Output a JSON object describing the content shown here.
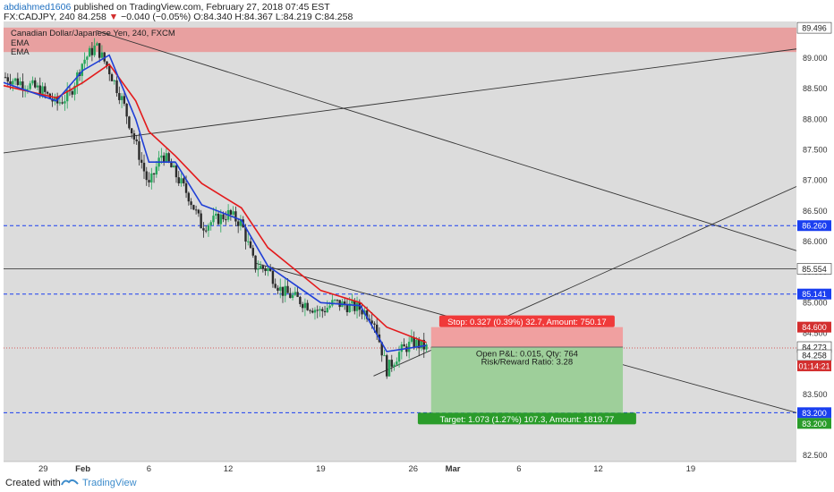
{
  "header": {
    "author": "abdiahmed1606",
    "published_text": "published on TradingView.com, February 27, 2018 07:45 EST",
    "symbol_line": "FX:CADJPY, 240",
    "last_price": "84.258",
    "change_arrow": "▼",
    "change": "−0.040 (−0.05%)",
    "open": "O:84.340",
    "high": "H:84.367",
    "low": "L:84.219",
    "close": "C:84.258"
  },
  "legend": {
    "title": "Canadian Dollar/Japanese Yen, 240, FXCM",
    "ema1": "EMA",
    "ema2": "EMA"
  },
  "colors": {
    "plot_bg": "#dcdcdc",
    "candle_up": "#26a65b",
    "candle_down": "#2b2b2b",
    "ema_fast": "#1f3fd6",
    "ema_slow": "#e31a1c",
    "dashed_level": "#1a3ff0",
    "resistance_zone": "#e8a0a0",
    "stop_box": "#f0a0a0",
    "target_box": "#9ecf9a",
    "stop_label": "#f03a3a",
    "target_label": "#2a9c2a",
    "current_price": "#d32f2f"
  },
  "price_axis": {
    "ticks": [
      "89.000",
      "88.500",
      "88.000",
      "87.500",
      "87.000",
      "86.500",
      "86.000",
      "85.500",
      "85.000",
      "84.500",
      "84.000",
      "83.500",
      "83.000",
      "82.500"
    ],
    "labels": [
      {
        "text": "89.496",
        "style": "white"
      },
      {
        "text": "86.260",
        "style": "blue"
      },
      {
        "text": "85.554",
        "style": "white"
      },
      {
        "text": "85.141",
        "style": "blue"
      },
      {
        "text": "84.600",
        "style": "red"
      },
      {
        "text": "84.273",
        "style": "white"
      },
      {
        "text": "84.258",
        "style": "white"
      },
      {
        "text": "01:14:21",
        "style": "red"
      },
      {
        "text": "83.200",
        "style": "blue"
      },
      {
        "text": "83.200",
        "style": "green"
      }
    ]
  },
  "time_axis": {
    "ticks": [
      "29",
      "Feb",
      "6",
      "12",
      "19",
      "26",
      "Mar",
      "6",
      "12",
      "19"
    ]
  },
  "position": {
    "stop_label": "Stop: 0.327 (0.39%) 32.7, Amount: 750.17",
    "pnl_label": "Open P&L: 0.015, Qty: 764",
    "rr_label": "Risk/Reward Ratio: 3.28",
    "target_label": "Target: 1.073 (1.27%) 107.3, Amount: 1819.77"
  },
  "footer": {
    "created_with": "Created with",
    "brand": "TradingView"
  },
  "chart_data": {
    "type": "candlestick",
    "title": "Canadian Dollar/Japanese Yen, 240, FXCM",
    "symbol": "FX:CADJPY",
    "timeframe": "240",
    "ylim": [
      82.4,
      89.6
    ],
    "xlabels": [
      "29",
      "Feb",
      "6",
      "12",
      "19",
      "26",
      "Mar",
      "6",
      "12",
      "19"
    ],
    "close_path": [
      [
        "Jan 26",
        88.7
      ],
      [
        "Jan 28",
        88.55
      ],
      [
        "Jan 29",
        88.45
      ],
      [
        "Jan 30",
        88.25
      ],
      [
        "Jan 31",
        88.4
      ],
      [
        "Feb 1",
        88.95
      ],
      [
        "Feb 2",
        89.2
      ],
      [
        "Feb 3",
        88.8
      ],
      [
        "Feb 4",
        88.3
      ],
      [
        "Feb 5",
        87.6
      ],
      [
        "Feb 6",
        86.9
      ],
      [
        "Feb 7",
        87.45
      ],
      [
        "Feb 8",
        87.1
      ],
      [
        "Feb 9",
        86.75
      ],
      [
        "Feb 10",
        86.25
      ],
      [
        "Feb 12",
        86.45
      ],
      [
        "Feb 13",
        86.3
      ],
      [
        "Feb 14",
        85.6
      ],
      [
        "Feb 15",
        85.55
      ],
      [
        "Feb 16",
        85.2
      ],
      [
        "Feb 19",
        84.85
      ],
      [
        "Feb 20",
        85.0
      ],
      [
        "Feb 21",
        84.95
      ],
      [
        "Feb 22",
        84.9
      ],
      [
        "Feb 23",
        84.75
      ],
      [
        "Feb 24",
        83.9
      ],
      [
        "Feb 25",
        84.2
      ],
      [
        "Feb 26",
        84.35
      ],
      [
        "Feb 27",
        84.258
      ]
    ],
    "ema_fast": [
      [
        "Jan 26",
        88.6
      ],
      [
        "Jan 30",
        88.3
      ],
      [
        "Feb 1",
        88.8
      ],
      [
        "Feb 3",
        89.05
      ],
      [
        "Feb 5",
        88.0
      ],
      [
        "Feb 6",
        87.3
      ],
      [
        "Feb 8",
        87.3
      ],
      [
        "Feb 10",
        86.6
      ],
      [
        "Feb 13",
        86.35
      ],
      [
        "Feb 15",
        85.6
      ],
      [
        "Feb 19",
        85.0
      ],
      [
        "Feb 22",
        84.95
      ],
      [
        "Feb 24",
        84.2
      ],
      [
        "Feb 27",
        84.3
      ]
    ],
    "ema_slow": [
      [
        "Jan 26",
        88.55
      ],
      [
        "Jan 30",
        88.35
      ],
      [
        "Feb 1",
        88.6
      ],
      [
        "Feb 3",
        88.9
      ],
      [
        "Feb 5",
        88.3
      ],
      [
        "Feb 6",
        87.8
      ],
      [
        "Feb 8",
        87.4
      ],
      [
        "Feb 10",
        86.95
      ],
      [
        "Feb 13",
        86.55
      ],
      [
        "Feb 15",
        85.9
      ],
      [
        "Feb 19",
        85.2
      ],
      [
        "Feb 22",
        85.0
      ],
      [
        "Feb 24",
        84.6
      ],
      [
        "Feb 27",
        84.35
      ]
    ],
    "horizontal_levels": [
      {
        "price": 86.26,
        "style": "dashed"
      },
      {
        "price": 85.554,
        "style": "solid"
      },
      {
        "price": 85.141,
        "style": "dashed"
      },
      {
        "price": 83.2,
        "style": "dashed"
      }
    ],
    "resistance_zone": [
      89.1,
      89.5
    ],
    "trendlines": [
      {
        "from": [
          "Jan 26",
          87.45
        ],
        "to": [
          "Mar 27",
          89.15
        ]
      },
      {
        "from": [
          "Feb 2",
          89.45
        ],
        "to": [
          "Mar 27",
          85.85
        ]
      },
      {
        "from": [
          "Feb 14",
          85.65
        ],
        "to": [
          "Mar 27",
          83.2
        ]
      },
      {
        "from": [
          "Feb 23",
          83.8
        ],
        "to": [
          "Mar 27",
          86.9
        ]
      }
    ],
    "position": {
      "entry": 84.273,
      "stop": 84.6,
      "target": 83.2
    }
  }
}
